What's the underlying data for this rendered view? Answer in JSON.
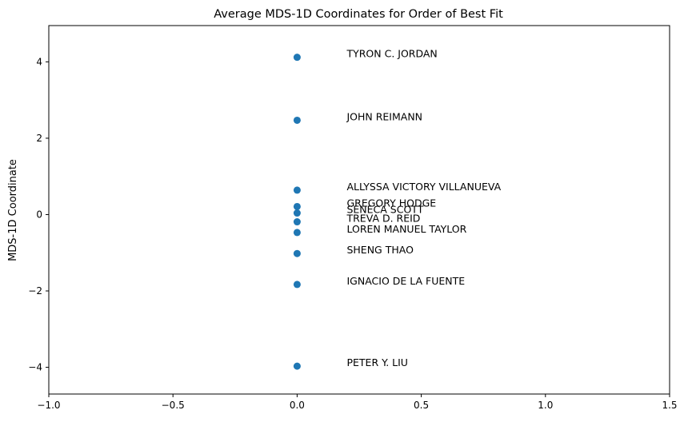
{
  "chart_data": {
    "type": "scatter",
    "title": "Average MDS-1D Coordinates for Order of Best Fit",
    "xlabel": "",
    "ylabel": "MDS-1D Coordinate",
    "xlim": [
      -1.0,
      1.5
    ],
    "ylim": [
      -4.7,
      4.95
    ],
    "xticks": [
      -1.0,
      -0.5,
      0.0,
      0.5,
      1.0,
      1.5
    ],
    "xtick_labels": [
      "−1.0",
      "−0.5",
      "0.0",
      "0.5",
      "1.0",
      "1.5"
    ],
    "yticks": [
      -4,
      -2,
      0,
      2,
      4
    ],
    "ytick_labels": [
      "−4",
      "−2",
      "0",
      "2",
      "4"
    ],
    "grid": false,
    "marker_color": "#1f77b4",
    "points": [
      {
        "label": "TYRON C. JORDAN",
        "x": 0.0,
        "y": 4.12
      },
      {
        "label": "JOHN REIMANN",
        "x": 0.0,
        "y": 2.47
      },
      {
        "label": "ALLYSSA VICTORY VILLANUEVA",
        "x": 0.0,
        "y": 0.64
      },
      {
        "label": "GREGORY HODGE",
        "x": 0.0,
        "y": 0.21
      },
      {
        "label": "SENECA SCOTT",
        "x": 0.0,
        "y": 0.04
      },
      {
        "label": "TREVA D. REID",
        "x": 0.0,
        "y": -0.19
      },
      {
        "label": "LOREN MANUEL TAYLOR",
        "x": 0.0,
        "y": -0.47
      },
      {
        "label": "SHENG THAO",
        "x": 0.0,
        "y": -1.02
      },
      {
        "label": "IGNACIO DE LA FUENTE",
        "x": 0.0,
        "y": -1.83
      },
      {
        "label": "PETER Y. LIU",
        "x": 0.0,
        "y": -3.97
      }
    ]
  }
}
